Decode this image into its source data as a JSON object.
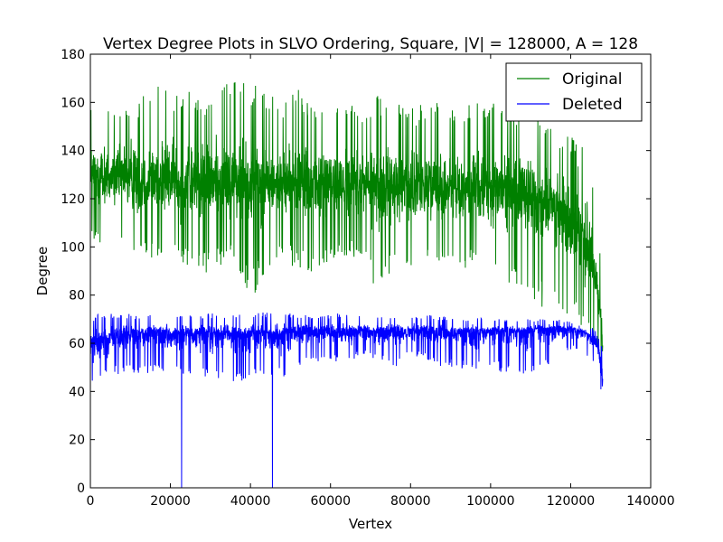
{
  "chart_data": {
    "type": "line",
    "title": "Vertex Degree Plots in SLVO Ordering, Square, |V| = 128000, A = 128",
    "xlabel": "Vertex",
    "ylabel": "Degree",
    "xlim": [
      0,
      140000
    ],
    "ylim": [
      0,
      180
    ],
    "xticks": [
      0,
      20000,
      40000,
      60000,
      80000,
      100000,
      120000,
      140000
    ],
    "xtick_labels": [
      "0",
      "20000",
      "40000",
      "60000",
      "80000",
      "100000",
      "120000",
      "140000"
    ],
    "yticks": [
      0,
      20,
      40,
      60,
      80,
      100,
      120,
      140,
      160,
      180
    ],
    "ytick_labels": [
      "0",
      "20",
      "40",
      "60",
      "80",
      "100",
      "120",
      "140",
      "160",
      "180"
    ],
    "grid": false,
    "legend_position": "top-right",
    "series": [
      {
        "name": "Original",
        "color": "#008000",
        "x": [
          0,
          4000,
          8000,
          12000,
          16000,
          20000,
          24000,
          28000,
          32000,
          36000,
          40000,
          44000,
          48000,
          52000,
          56000,
          60000,
          64000,
          68000,
          72000,
          76000,
          80000,
          84000,
          88000,
          92000,
          96000,
          100000,
          104000,
          108000,
          112000,
          116000,
          120000,
          122000,
          124000,
          126000,
          127000,
          128000
        ],
        "mean": [
          130,
          129,
          129,
          128,
          128,
          128,
          127,
          127,
          127,
          127,
          127,
          126,
          126,
          126,
          126,
          126,
          126,
          126,
          125,
          125,
          125,
          125,
          125,
          125,
          124,
          124,
          123,
          122,
          120,
          117,
          110,
          106,
          100,
          90,
          80,
          60
        ],
        "min": [
          100,
          102,
          98,
          96,
          95,
          94,
          90,
          88,
          92,
          95,
          77,
          90,
          95,
          90,
          88,
          92,
          95,
          95,
          80,
          92,
          90,
          95,
          93,
          91,
          90,
          83,
          85,
          82,
          75,
          72,
          70,
          66,
          62,
          58,
          55,
          50
        ],
        "max": [
          163,
          161,
          158,
          160,
          170,
          165,
          168,
          162,
          169,
          175,
          168,
          165,
          160,
          167,
          158,
          162,
          158,
          160,
          164,
          160,
          158,
          160,
          160,
          155,
          163,
          160,
          158,
          160,
          155,
          150,
          148,
          140,
          145,
          130,
          120,
          70
        ]
      },
      {
        "name": "Deleted",
        "color": "#0000ff",
        "x": [
          0,
          4000,
          8000,
          12000,
          16000,
          20000,
          24000,
          28000,
          32000,
          36000,
          40000,
          44000,
          48000,
          52000,
          56000,
          60000,
          64000,
          68000,
          72000,
          76000,
          80000,
          84000,
          88000,
          92000,
          96000,
          100000,
          104000,
          108000,
          112000,
          116000,
          120000,
          122000,
          124000,
          126000,
          127000,
          128000
        ],
        "mean": [
          60,
          62,
          63,
          64,
          64,
          64,
          64,
          64,
          64,
          64,
          64,
          64,
          64,
          65,
          65,
          65,
          65,
          65,
          65,
          65,
          65,
          65,
          65,
          65,
          65,
          65,
          65,
          65,
          66,
          66,
          66,
          65,
          64,
          62,
          58,
          45
        ],
        "min": [
          40,
          45,
          48,
          47,
          48,
          45,
          47,
          45,
          45,
          42,
          47,
          47,
          45,
          50,
          52,
          52,
          52,
          55,
          53,
          50,
          55,
          53,
          50,
          49,
          48,
          50,
          47,
          45,
          50,
          52,
          57,
          57,
          55,
          52,
          48,
          34
        ],
        "max": [
          72,
          73,
          73,
          72,
          72,
          72,
          72,
          72,
          73,
          72,
          73,
          73,
          73,
          72,
          72,
          72,
          73,
          72,
          72,
          72,
          72,
          72,
          71,
          70,
          71,
          70,
          70,
          70,
          70,
          70,
          69,
          68,
          68,
          66,
          62,
          58
        ],
        "drops": [
          {
            "x": 22800,
            "y": 0
          },
          {
            "x": 45500,
            "y": 0
          }
        ]
      }
    ]
  }
}
